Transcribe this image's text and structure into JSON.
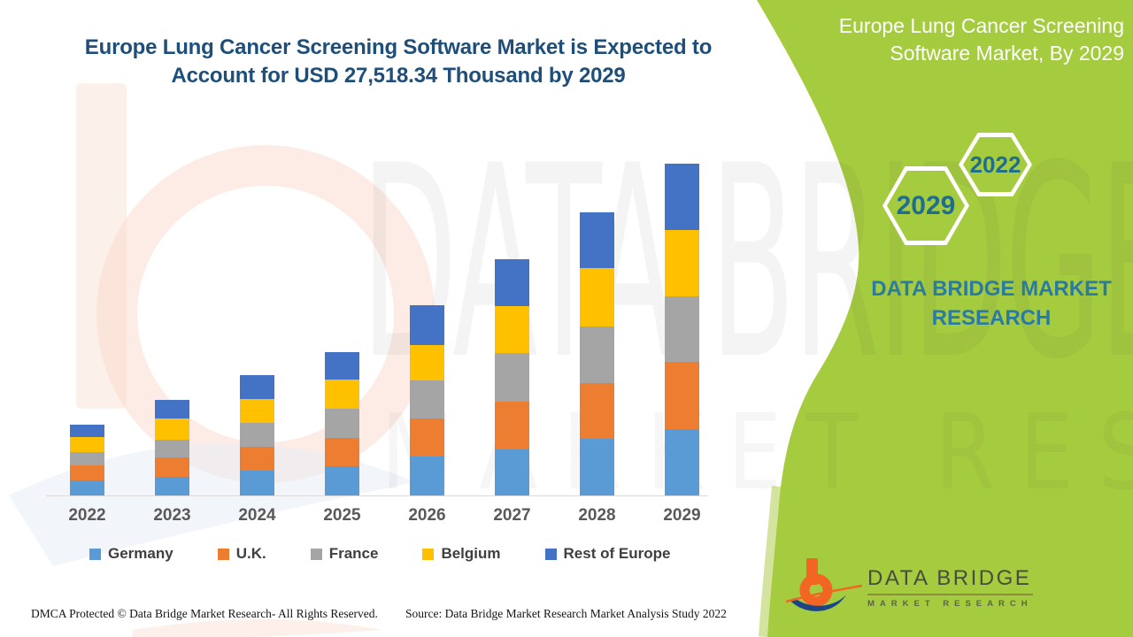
{
  "header": {
    "title_line1": "Europe Lung Cancer Screening Software Market is Expected to",
    "title_line2": "Account for USD 27,518.34 Thousand by 2029"
  },
  "side_panel": {
    "title_line1": "Europe Lung Cancer Screening",
    "title_line2": "Software Market, By 2029",
    "hex_large_label": "2029",
    "hex_small_label": "2022",
    "brand_line1": "DATA BRIDGE MARKET",
    "brand_line2": "RESEARCH",
    "panel_color": "#A5CB3E"
  },
  "chart_data": {
    "type": "bar",
    "stacked": true,
    "title": "Europe Lung Cancer Screening Software Market is Expected to Account for USD 27,518.34 Thousand by 2029",
    "unit": "USD Thousand",
    "categories": [
      "2022",
      "2023",
      "2024",
      "2025",
      "2026",
      "2027",
      "2028",
      "2029"
    ],
    "series": [
      {
        "name": "Germany",
        "color": "#5B9BD5",
        "values": [
          1218,
          1541,
          2077,
          2444,
          3251,
          3838,
          4696,
          5504
        ]
      },
      {
        "name": "U.K.",
        "color": "#ED7D31",
        "values": [
          1299,
          1636,
          1959,
          2326,
          3155,
          3911,
          4593,
          5548
        ]
      },
      {
        "name": "France",
        "color": "#A5A5A5",
        "values": [
          1049,
          1468,
          2003,
          2444,
          3133,
          4036,
          4726,
          5459
        ]
      },
      {
        "name": "Belgium",
        "color": "#FFC000",
        "values": [
          1277,
          1739,
          1959,
          2370,
          2935,
          3940,
          4814,
          5504
        ]
      },
      {
        "name": "Rest of Europe",
        "color": "#4472C4",
        "values": [
          1050,
          1563,
          1959,
          2297,
          3302,
          3889,
          4652,
          5503.34
        ]
      }
    ],
    "totals": [
      5893,
      7947,
      9957,
      11881,
      15776,
      19614,
      23481,
      27518.34
    ],
    "ylim": [
      0,
      27518.34
    ],
    "gridlines": false,
    "y_axis_visible": false,
    "legend_position": "bottom"
  },
  "watermark": {
    "big_text": "DATA BRIDGE",
    "sub_text": "MARKET RESEARCH"
  },
  "logo": {
    "title": "DATA BRIDGE",
    "subtitle": "MARKET RESEARCH"
  },
  "footer": {
    "left": "DMCA Protected © Data Bridge Market Research- All Rights Reserved.",
    "right": "Source: Data Bridge Market Research Market Analysis Study 2022"
  },
  "colors": {
    "title_blue": "#1F4E79",
    "panel_green": "#A5CB3E",
    "panel_green_light": "#D4E49F",
    "teal_text": "#2A7BA3",
    "hex_number_teal": "#1F6E90",
    "axis_label_gray": "#595959",
    "logo_orange": "#F26522",
    "logo_navy": "#1C4587"
  }
}
